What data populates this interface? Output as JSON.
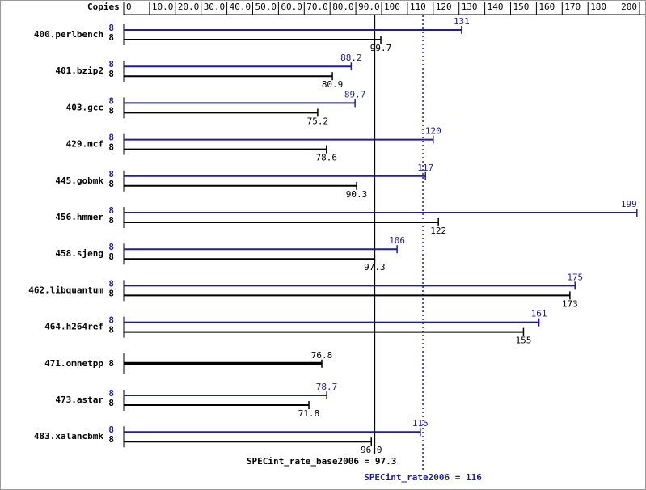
{
  "chart_data": {
    "type": "bar",
    "orientation": "horizontal",
    "axis_title": "Copies",
    "categories": [
      "400.perlbench",
      "401.bzip2",
      "403.gcc",
      "429.mcf",
      "445.gobmk",
      "456.hmmer",
      "458.sjeng",
      "462.libquantum",
      "464.h264ref",
      "471.omnetpp",
      "473.astar",
      "483.xalancbmk"
    ],
    "xlim": [
      0,
      200
    ],
    "xticks": [
      0,
      {
        "value": 10,
        "label": "10.0"
      },
      {
        "value": 20,
        "label": "20.0"
      },
      {
        "value": 30,
        "label": "30.0"
      },
      {
        "value": 40,
        "label": "40.0"
      },
      {
        "value": 50,
        "label": "50.0"
      },
      {
        "value": 60,
        "label": "60.0"
      },
      {
        "value": 70,
        "label": "70.0"
      },
      {
        "value": 80,
        "label": "80.0"
      },
      {
        "value": 90,
        "label": "90.0"
      },
      100,
      110,
      120,
      130,
      140,
      150,
      160,
      170,
      180,
      200
    ],
    "series": [
      {
        "color": "#1f1f99",
        "copies": [
          8,
          8,
          8,
          8,
          8,
          8,
          8,
          8,
          8,
          null,
          8,
          8
        ],
        "values": [
          131,
          88.2,
          89.7,
          120,
          117,
          199,
          106,
          175,
          161,
          null,
          78.7,
          115
        ],
        "value_labels": [
          "131",
          "88.2",
          "89.7",
          "120",
          "117",
          "199",
          "106",
          "175",
          "161",
          null,
          "78.7",
          "115"
        ]
      },
      {
        "color": "#000000",
        "copies": [
          8,
          8,
          8,
          8,
          8,
          8,
          8,
          8,
          8,
          8,
          8,
          8
        ],
        "values": [
          99.7,
          80.9,
          75.2,
          78.6,
          90.3,
          122,
          97.3,
          173,
          155,
          76.8,
          71.8,
          96.0
        ],
        "value_labels": [
          "99.7",
          "80.9",
          "75.2",
          "78.6",
          "90.3",
          "122",
          "97.3",
          "173",
          "155",
          "76.8",
          "71.8",
          "96.0"
        ]
      }
    ],
    "reference_lines": [
      {
        "label": "SPECint_rate_base2006 = 97.3",
        "value": 97.3,
        "color": "#000000",
        "style": "solid"
      },
      {
        "label": "SPECint_rate2006 = 116",
        "value": 116,
        "color": "#1f1f99",
        "style": "dotted"
      }
    ]
  }
}
